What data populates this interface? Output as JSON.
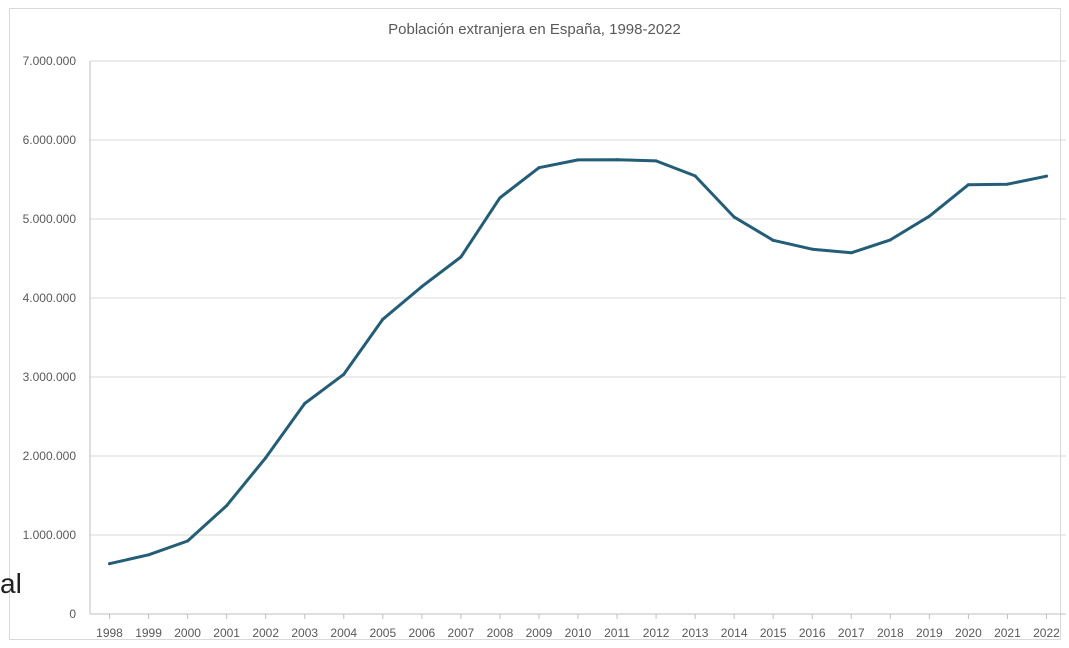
{
  "chart_data": {
    "type": "line",
    "title": "Población extranjera en España, 1998-2022",
    "xlabel": "",
    "ylabel": "",
    "grid": true,
    "ylim": [
      0,
      7000000
    ],
    "y_ticks": [
      "0",
      "1.000.000",
      "2.000.000",
      "3.000.000",
      "4.000.000",
      "5.000.000",
      "6.000.000",
      "7.000.000"
    ],
    "x": [
      "1998",
      "1999",
      "2000",
      "2001",
      "2002",
      "2003",
      "2004",
      "2005",
      "2006",
      "2007",
      "2008",
      "2009",
      "2010",
      "2011",
      "2012",
      "2013",
      "2014",
      "2015",
      "2016",
      "2017",
      "2018",
      "2019",
      "2020",
      "2021",
      "2022"
    ],
    "series": [
      {
        "color": "#235d78",
        "values": [
          637000,
          749000,
          924000,
          1371000,
          1977000,
          2664000,
          3034000,
          3731000,
          4144000,
          4519000,
          5268000,
          5649000,
          5748000,
          5751000,
          5736000,
          5546000,
          5024000,
          4730000,
          4618000,
          4572000,
          4735000,
          5036000,
          5434000,
          5440000,
          5542000
        ]
      }
    ]
  },
  "side_fragment": "al"
}
